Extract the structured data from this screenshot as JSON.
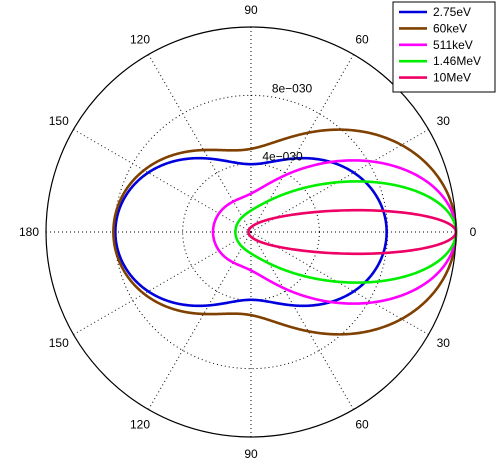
{
  "chart_data": {
    "type": "polar-line",
    "angle_ticks": [
      "0",
      "30",
      "60",
      "90",
      "120",
      "150",
      "180",
      "150",
      "120",
      "90",
      "60",
      "30"
    ],
    "angle_tick_degrees": [
      0,
      30,
      60,
      90,
      120,
      150,
      180,
      210,
      240,
      270,
      300,
      330
    ],
    "radial_ticks": [
      {
        "value": 4e-30,
        "label": "4e−030"
      },
      {
        "value": 8e-30,
        "label": "8e−030"
      }
    ],
    "rlim": [
      0,
      1.2e-29
    ],
    "grid": true,
    "legend_position": "top-right",
    "series": [
      {
        "name": "2.75eV",
        "color": "#0000dd",
        "formula": "thomson",
        "scale": 7.94e-30
      },
      {
        "name": "60keV",
        "color": "#7f4000",
        "formula": "klein-nishina",
        "k": 0.117,
        "scale": 1.2e-29
      },
      {
        "name": "511keV",
        "color": "#ff00ff",
        "formula": "klein-nishina",
        "k": 1.0,
        "scale": 1.2e-29
      },
      {
        "name": "1.46MeV",
        "color": "#00ee00",
        "formula": "klein-nishina",
        "k": 2.86,
        "scale": 1.2e-29
      },
      {
        "name": "10MeV",
        "color": "#ee0066",
        "formula": "klein-nishina",
        "k": 19.6,
        "scale": 1.2e-29
      }
    ]
  }
}
